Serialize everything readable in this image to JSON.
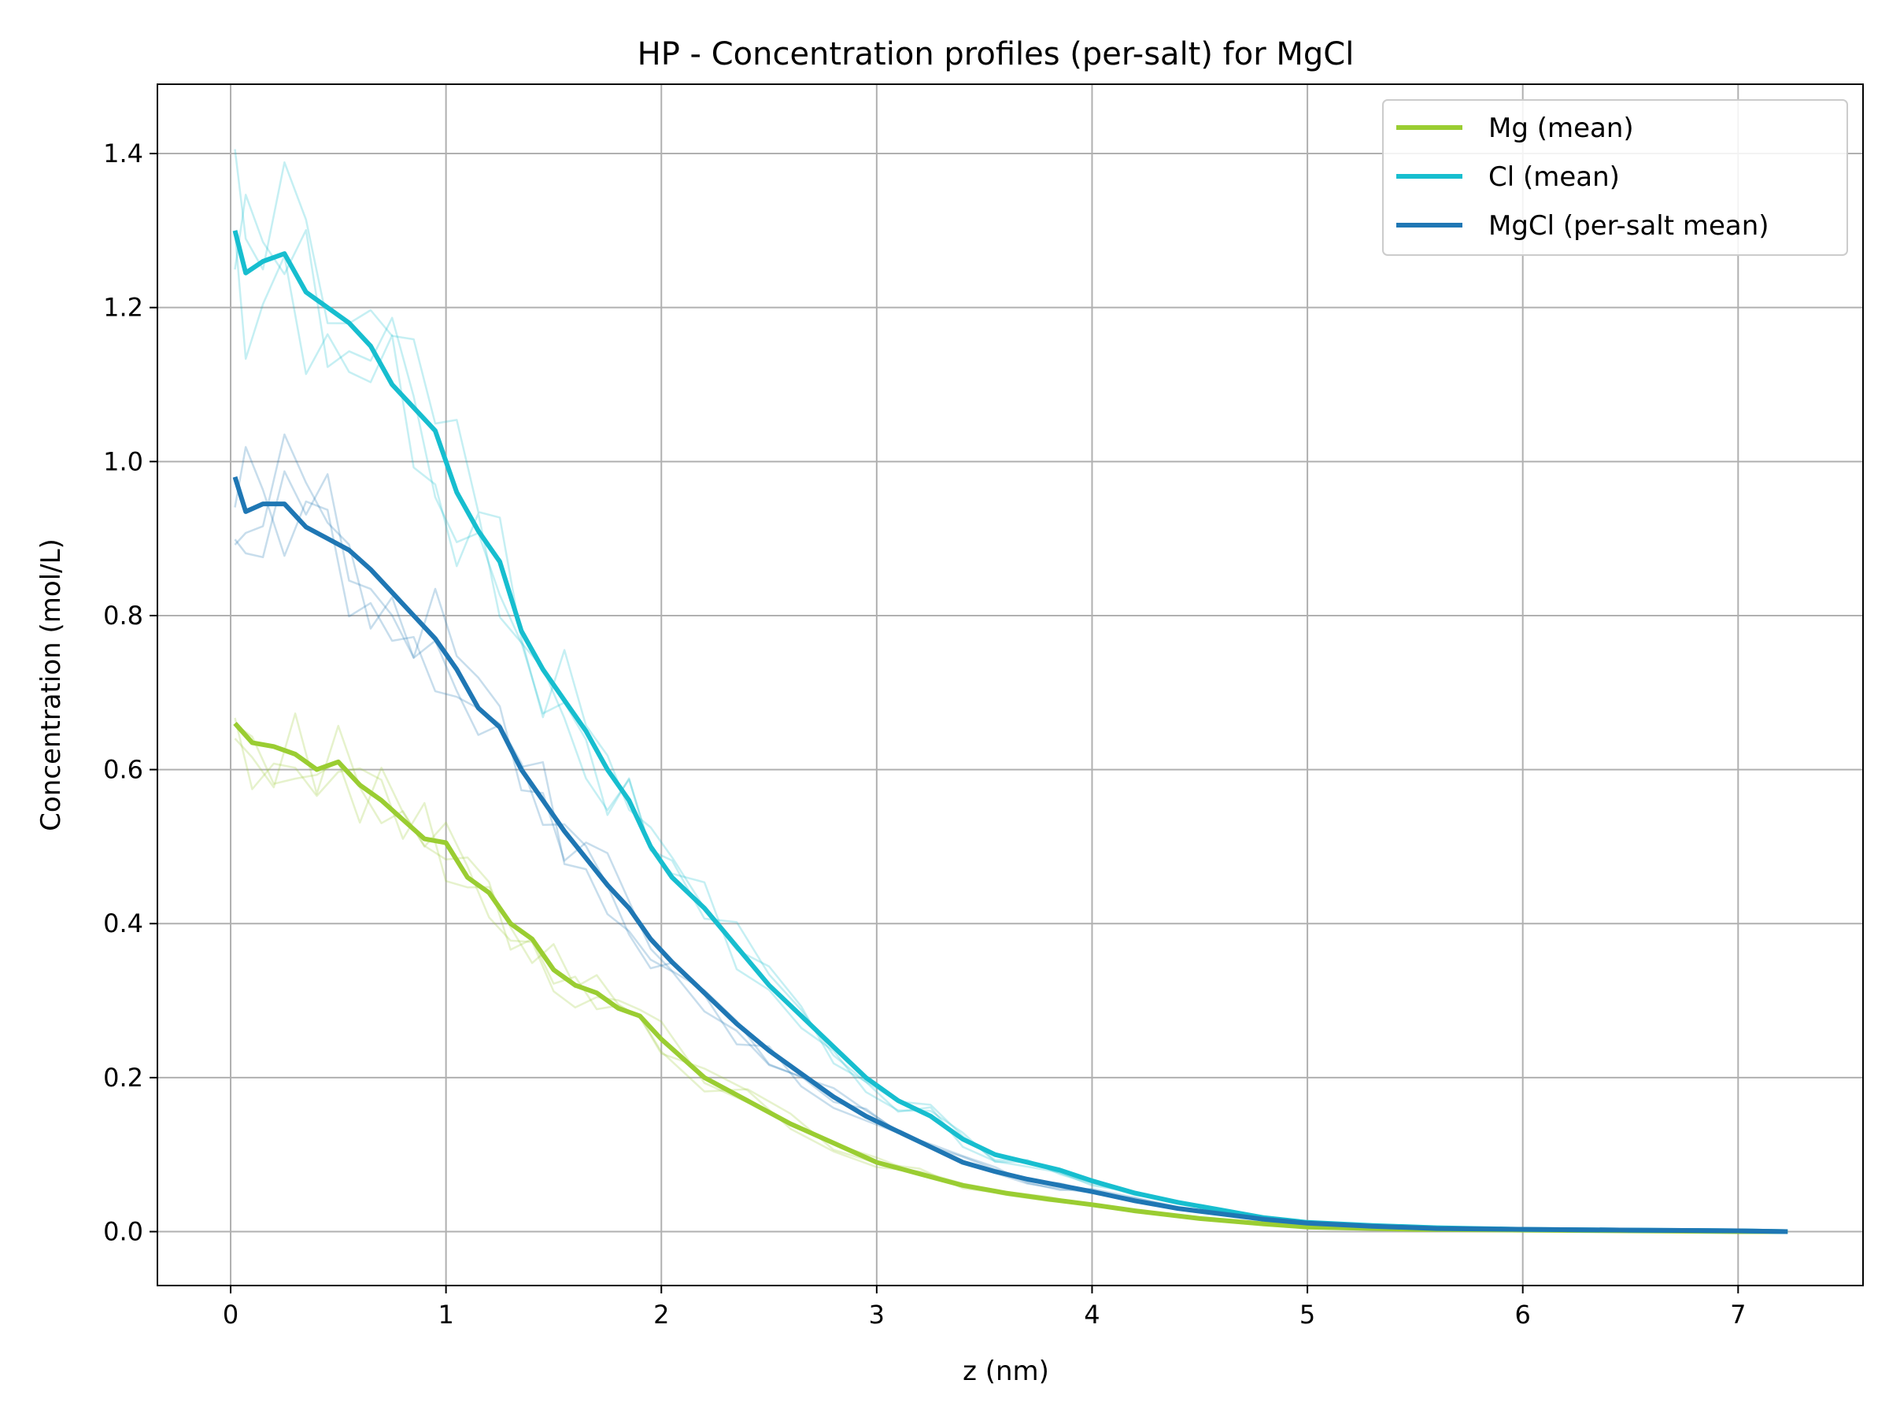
{
  "chart_data": {
    "type": "line",
    "title": "HP - Concentration profiles (per-salt) for MgCl",
    "xlabel": "z (nm)",
    "ylabel": "Concentration (mol/L)",
    "xlim": [
      -0.34,
      7.58
    ],
    "ylim": [
      -0.07,
      1.49
    ],
    "xticks": [
      0,
      1,
      2,
      3,
      4,
      5,
      6,
      7
    ],
    "yticks": [
      0.0,
      0.2,
      0.4,
      0.6,
      0.8,
      1.0,
      1.2,
      1.4
    ],
    "xtick_labels": [
      "0",
      "1",
      "2",
      "3",
      "4",
      "5",
      "6",
      "7"
    ],
    "ytick_labels": [
      "0.0",
      "0.2",
      "0.4",
      "0.6",
      "0.8",
      "1.0",
      "1.2",
      "1.4"
    ],
    "grid": true,
    "legend_position": "top-right",
    "series": [
      {
        "name": "Mg (mean)",
        "color": "#9acd32",
        "x": [
          0.02,
          0.1,
          0.2,
          0.3,
          0.4,
          0.5,
          0.6,
          0.7,
          0.8,
          0.9,
          1.0,
          1.1,
          1.2,
          1.3,
          1.4,
          1.5,
          1.6,
          1.7,
          1.8,
          1.9,
          2.0,
          2.2,
          2.4,
          2.6,
          2.8,
          3.0,
          3.2,
          3.4,
          3.6,
          3.8,
          4.0,
          4.2,
          4.5,
          4.8,
          5.0,
          5.5,
          6.0,
          6.5,
          7.0,
          7.23
        ],
        "y": [
          0.66,
          0.635,
          0.63,
          0.62,
          0.6,
          0.61,
          0.58,
          0.56,
          0.535,
          0.51,
          0.505,
          0.46,
          0.44,
          0.4,
          0.38,
          0.34,
          0.32,
          0.31,
          0.29,
          0.28,
          0.25,
          0.2,
          0.17,
          0.14,
          0.115,
          0.09,
          0.075,
          0.06,
          0.05,
          0.042,
          0.035,
          0.027,
          0.017,
          0.01,
          0.006,
          0.003,
          0.002,
          0.001,
          0.0,
          0.0
        ]
      },
      {
        "name": "Cl (mean)",
        "color": "#17becf",
        "x": [
          0.02,
          0.07,
          0.15,
          0.25,
          0.35,
          0.45,
          0.55,
          0.65,
          0.75,
          0.85,
          0.95,
          1.05,
          1.15,
          1.25,
          1.35,
          1.45,
          1.55,
          1.65,
          1.75,
          1.85,
          1.95,
          2.05,
          2.2,
          2.35,
          2.5,
          2.65,
          2.8,
          2.95,
          3.1,
          3.25,
          3.4,
          3.55,
          3.7,
          3.85,
          4.0,
          4.2,
          4.4,
          4.6,
          4.8,
          5.0,
          5.3,
          5.6,
          6.0,
          6.5,
          7.0,
          7.23
        ],
        "y": [
          1.3,
          1.245,
          1.26,
          1.27,
          1.22,
          1.2,
          1.18,
          1.15,
          1.1,
          1.07,
          1.04,
          0.96,
          0.91,
          0.87,
          0.78,
          0.73,
          0.69,
          0.65,
          0.6,
          0.56,
          0.5,
          0.46,
          0.42,
          0.37,
          0.32,
          0.28,
          0.24,
          0.2,
          0.17,
          0.15,
          0.12,
          0.1,
          0.09,
          0.08,
          0.066,
          0.05,
          0.038,
          0.028,
          0.018,
          0.012,
          0.008,
          0.005,
          0.003,
          0.002,
          0.001,
          0.0
        ]
      },
      {
        "name": "MgCl (per-salt mean)",
        "color": "#1f77b4",
        "x": [
          0.02,
          0.07,
          0.15,
          0.25,
          0.35,
          0.45,
          0.55,
          0.65,
          0.75,
          0.85,
          0.95,
          1.05,
          1.15,
          1.25,
          1.35,
          1.45,
          1.55,
          1.65,
          1.75,
          1.85,
          1.95,
          2.05,
          2.2,
          2.35,
          2.5,
          2.65,
          2.8,
          2.95,
          3.1,
          3.25,
          3.4,
          3.55,
          3.7,
          3.85,
          4.0,
          4.2,
          4.4,
          4.6,
          4.8,
          5.0,
          5.3,
          5.6,
          6.0,
          6.5,
          7.0,
          7.23
        ],
        "y": [
          0.98,
          0.935,
          0.945,
          0.945,
          0.915,
          0.9,
          0.885,
          0.86,
          0.83,
          0.8,
          0.77,
          0.73,
          0.68,
          0.655,
          0.6,
          0.56,
          0.52,
          0.485,
          0.45,
          0.42,
          0.38,
          0.35,
          0.31,
          0.27,
          0.235,
          0.205,
          0.175,
          0.15,
          0.13,
          0.11,
          0.09,
          0.078,
          0.068,
          0.06,
          0.052,
          0.04,
          0.03,
          0.023,
          0.016,
          0.011,
          0.007,
          0.004,
          0.003,
          0.002,
          0.001,
          0.0
        ]
      }
    ]
  }
}
